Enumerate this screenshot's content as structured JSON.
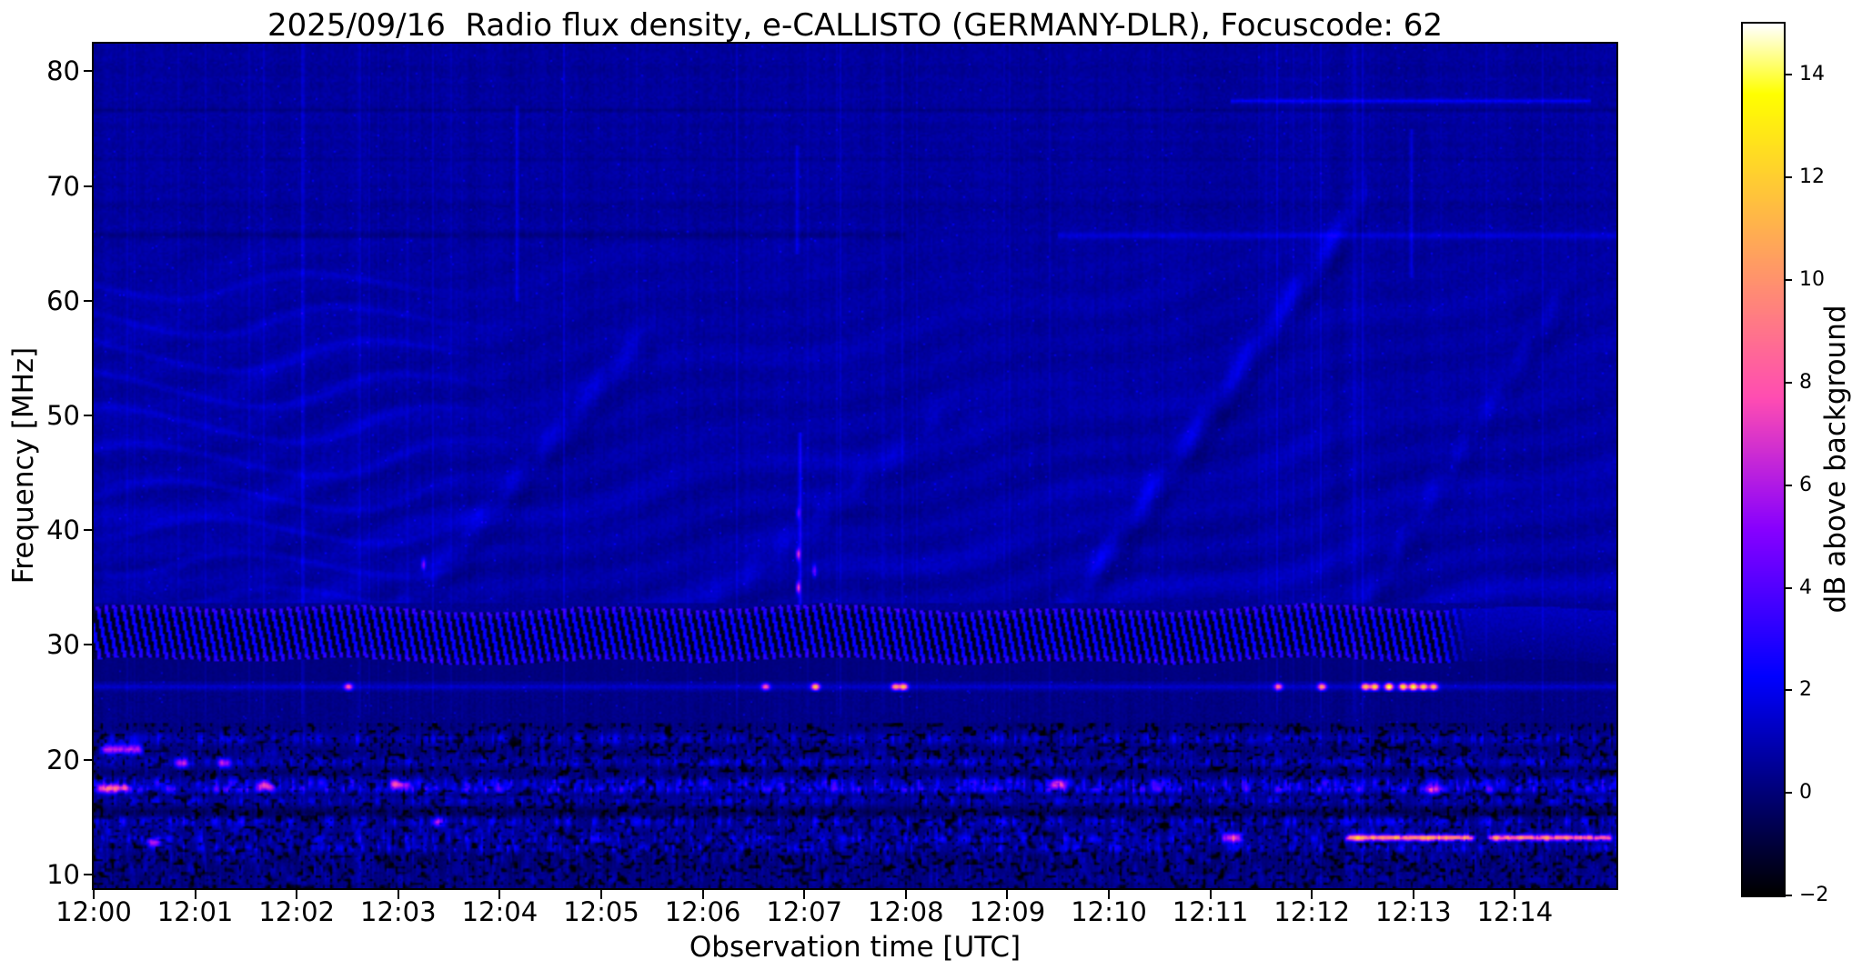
{
  "figure": {
    "background": "#ffffff",
    "text_color": "#000000"
  },
  "chart_data": {
    "type": "heatmap",
    "subtype": "solar radio spectrogram (dynamic spectrum)",
    "title": "2025/09/16  Radio flux density, e-CALLISTO (GERMANY-DLR), Focuscode: 62",
    "xlabel": "Observation time [UTC]",
    "ylabel": "Frequency [MHz]",
    "x_tick_labels": [
      "12:00",
      "12:01",
      "12:02",
      "12:03",
      "12:04",
      "12:05",
      "12:06",
      "12:07",
      "12:08",
      "12:09",
      "12:10",
      "12:11",
      "12:12",
      "12:13",
      "12:14"
    ],
    "x_tick_minutes": [
      0,
      1,
      2,
      3,
      4,
      5,
      6,
      7,
      8,
      9,
      10,
      11,
      12,
      13,
      14
    ],
    "x_range_minutes": [
      0,
      15
    ],
    "y_tick_labels": [
      "80",
      "70",
      "60",
      "50",
      "40",
      "30",
      "20",
      "10"
    ],
    "y_tick_values": [
      80,
      70,
      60,
      50,
      40,
      30,
      20,
      10
    ],
    "y_range_mhz": [
      8.8,
      82.4
    ],
    "grid": false,
    "colorbar": {
      "label": "dB above background",
      "tick_labels": [
        "14",
        "12",
        "10",
        "8",
        "6",
        "4",
        "2",
        "0",
        "−2"
      ],
      "tick_values": [
        14,
        12,
        10,
        8,
        6,
        4,
        2,
        0,
        -2
      ],
      "vmin": -2,
      "vmax": 15,
      "colormap": "gnuplot2",
      "position": "right"
    },
    "palette_reference": {
      "background_navy": "#0000a6",
      "ripple_blue": "#1c1cd8",
      "burst_yellow": "#ffff66",
      "burst_orange": "#ff9a4d",
      "blob_magenta": "#c72ad6",
      "black_db": "#000000"
    },
    "features": {
      "background_db": 0.7,
      "zigzag_band": {
        "f_low": 26.9,
        "f_high": 33.6,
        "tooth_period_min": 0.082,
        "dark_db": -1.6,
        "bright_db": 2.1,
        "smooth_after_min": 13.25
      },
      "line_26mhz": {
        "f": 26.35,
        "base_db": 1.3,
        "bursts": [
          [
            2.51,
            7.5
          ],
          [
            6.62,
            7.5
          ],
          [
            7.11,
            11
          ],
          [
            7.9,
            9.5
          ],
          [
            7.98,
            10.5
          ],
          [
            11.67,
            8
          ],
          [
            12.1,
            9.5
          ],
          [
            12.53,
            11
          ],
          [
            12.62,
            12
          ],
          [
            12.76,
            14
          ],
          [
            12.9,
            12.5
          ],
          [
            13.0,
            13.5
          ],
          [
            13.1,
            12
          ],
          [
            13.2,
            11
          ]
        ]
      },
      "streaks_13mhz": [
        [
          12.32,
          13.62,
          13.2,
          10
        ],
        [
          13.72,
          14.97,
          13.2,
          9
        ]
      ],
      "blobs": [
        [
          0.05,
          0.5,
          20.9,
          6
        ],
        [
          0.0,
          0.38,
          17.5,
          6.5
        ],
        [
          0.78,
          0.95,
          19.7,
          5.5
        ],
        [
          1.2,
          1.38,
          19.7,
          5
        ],
        [
          1.58,
          1.8,
          17.7,
          5
        ],
        [
          0.5,
          0.68,
          12.8,
          5.5
        ],
        [
          2.9,
          3.15,
          17.8,
          5
        ],
        [
          3.3,
          3.5,
          14.6,
          4.5
        ],
        [
          9.4,
          9.6,
          17.8,
          5
        ],
        [
          11.1,
          11.35,
          13.2,
          6
        ],
        [
          13.1,
          13.3,
          17.4,
          5
        ]
      ],
      "diagonal_bands": [
        [
          9.35,
          30.5,
          12.25,
          66,
          1.25
        ],
        [
          2.9,
          32,
          5.3,
          56,
          0.85
        ],
        [
          6.0,
          33,
          8.3,
          50,
          0.55
        ],
        [
          12.45,
          33,
          14.4,
          60,
          0.6
        ]
      ],
      "vertical_bursts": [
        [
          6.96,
          33,
          48.5,
          1.8
        ],
        [
          4.17,
          60,
          77,
          1.2
        ],
        [
          6.93,
          64,
          73.5,
          1.1
        ],
        [
          12.98,
          62,
          75,
          1.0
        ]
      ],
      "point_bursts": [
        [
          6.94,
          37.9,
          6
        ],
        [
          6.94,
          35.0,
          6.5
        ],
        [
          7.1,
          36.5,
          4
        ],
        [
          6.94,
          41.5,
          3
        ],
        [
          3.25,
          37.0,
          4.5
        ]
      ],
      "h_lines": [
        {
          "f": 76.6,
          "db": -0.42,
          "t0": 0,
          "t1": 15
        },
        {
          "f": 72.3,
          "db": -0.3,
          "t0": 0,
          "t1": 15
        },
        {
          "f": 68.4,
          "db": -0.22,
          "t0": 0,
          "t1": 15
        },
        {
          "f": 65.7,
          "db": -0.5,
          "t0": 0,
          "t1": 8
        },
        {
          "f": 65.7,
          "db": 0.9,
          "t0": 9.5,
          "t1": 15
        },
        {
          "f": 77.4,
          "db": 1.5,
          "t0": 11.2,
          "t1": 14.75
        }
      ],
      "bottom_bands": [
        [
          21.8,
          0.5,
          0.4,
          2.2
        ],
        [
          20.6,
          0.35,
          -0.2,
          1.2
        ],
        [
          19.8,
          0.4,
          0.5,
          2.0
        ],
        [
          18.9,
          0.3,
          -0.4,
          0.8
        ],
        [
          18.0,
          0.45,
          0.6,
          2.6
        ],
        [
          17.4,
          0.35,
          0.8,
          3.0
        ],
        [
          16.4,
          0.4,
          0.4,
          1.8
        ],
        [
          15.4,
          0.4,
          -0.8,
          0.6
        ],
        [
          14.6,
          0.45,
          0.3,
          2.4
        ],
        [
          13.8,
          0.35,
          0.1,
          1.6
        ],
        [
          13.1,
          0.4,
          0.3,
          2.6
        ],
        [
          12.3,
          0.4,
          0.2,
          2.2
        ],
        [
          11.4,
          0.45,
          -0.3,
          1.6
        ],
        [
          10.5,
          0.5,
          -0.2,
          1.4
        ],
        [
          9.6,
          0.5,
          0.0,
          1.0
        ]
      ]
    }
  }
}
